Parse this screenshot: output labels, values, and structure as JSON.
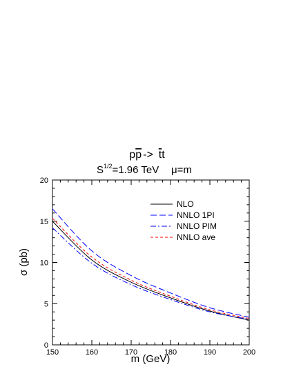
{
  "chart_data": {
    "type": "line",
    "title": {
      "process_pre": "p",
      "process_pbar": "p",
      "process_arrow": "->",
      "process_tbar": "t",
      "process_t": "t",
      "energy_pre": "S",
      "energy_exp": "1/2",
      "energy_value": "=1.96 TeV",
      "scale": "μ=m"
    },
    "xlabel": "m (GeV)",
    "ylabel": "σ (pb)",
    "xlim": [
      150,
      200
    ],
    "ylim": [
      0,
      20
    ],
    "xticks": [
      150,
      160,
      170,
      180,
      190,
      200
    ],
    "yticks": [
      0,
      5,
      10,
      15,
      20
    ],
    "x": [
      150,
      160,
      170,
      180,
      190,
      200
    ],
    "grid": false,
    "legend_position": "top-right",
    "series": [
      {
        "name": "NLO",
        "color": "#000000",
        "dash": "solid",
        "values": [
          15.0,
          10.3,
          7.6,
          5.7,
          4.1,
          3.0
        ]
      },
      {
        "name": "NNLO 1PI",
        "color": "#0000ff",
        "dash": "long-dash",
        "values": [
          16.5,
          11.4,
          8.4,
          6.3,
          4.5,
          3.35
        ]
      },
      {
        "name": "NNLO PIM",
        "color": "#0000ff",
        "dash": "dash-dot",
        "values": [
          14.2,
          9.9,
          7.3,
          5.5,
          4.0,
          3.1
        ]
      },
      {
        "name": "NNLO ave",
        "color": "#ff0000",
        "dash": "short-dash",
        "values": [
          15.35,
          10.65,
          7.85,
          5.9,
          4.25,
          3.2
        ]
      }
    ]
  }
}
